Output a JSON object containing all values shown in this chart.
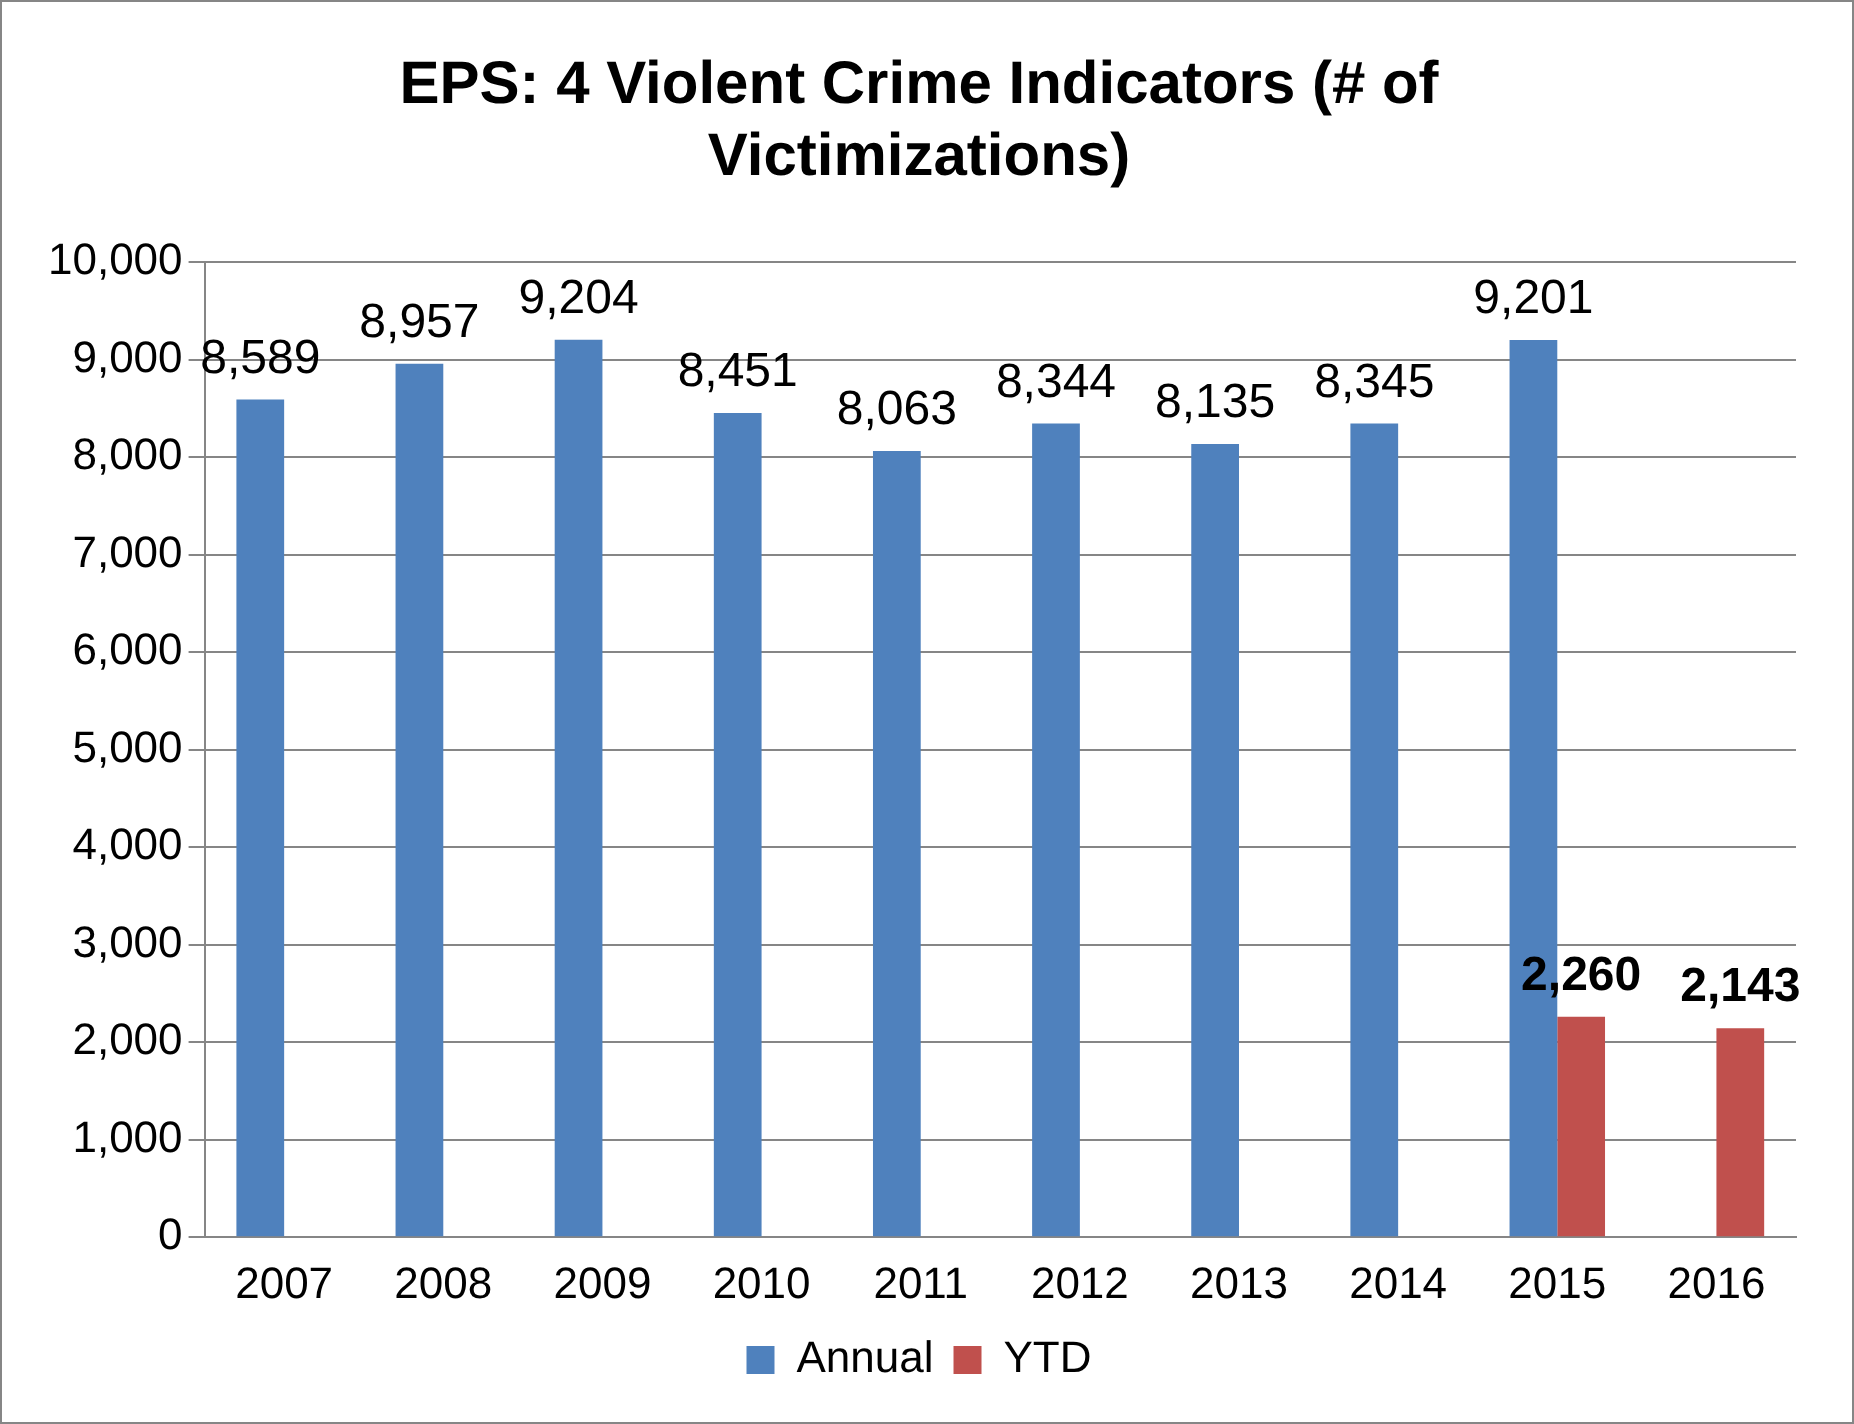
{
  "chart_data": {
    "type": "bar",
    "title": "EPS: 4 Violent Crime Indicators (# of Victimizations)",
    "categories": [
      "2007",
      "2008",
      "2009",
      "2010",
      "2011",
      "2012",
      "2013",
      "2014",
      "2015",
      "2016"
    ],
    "series": [
      {
        "name": "Annual",
        "color": "#4f81bd",
        "values": [
          8589,
          8957,
          9204,
          8451,
          8063,
          8344,
          8135,
          8345,
          9201,
          null
        ],
        "value_labels": [
          "8,589",
          "8,957",
          "9,204",
          "8,451",
          "8,063",
          "8,344",
          "8,135",
          "8,345",
          "9,201",
          null
        ]
      },
      {
        "name": "YTD",
        "color": "#c0504d",
        "values": [
          null,
          null,
          null,
          null,
          null,
          null,
          null,
          null,
          2260,
          2143
        ],
        "value_labels": [
          null,
          null,
          null,
          null,
          null,
          null,
          null,
          null,
          "2,260",
          "2,143"
        ]
      }
    ],
    "ylim": [
      0,
      10000
    ],
    "yticks": [
      {
        "value": 0,
        "label": "0"
      },
      {
        "value": 1000,
        "label": "1,000"
      },
      {
        "value": 2000,
        "label": "2,000"
      },
      {
        "value": 3000,
        "label": "3,000"
      },
      {
        "value": 4000,
        "label": "4,000"
      },
      {
        "value": 5000,
        "label": "5,000"
      },
      {
        "value": 6000,
        "label": "6,000"
      },
      {
        "value": 7000,
        "label": "7,000"
      },
      {
        "value": 8000,
        "label": "8,000"
      },
      {
        "value": 9000,
        "label": "9,000"
      },
      {
        "value": 10000,
        "label": "10,000"
      }
    ],
    "grid": "y",
    "legend": "bottom"
  }
}
